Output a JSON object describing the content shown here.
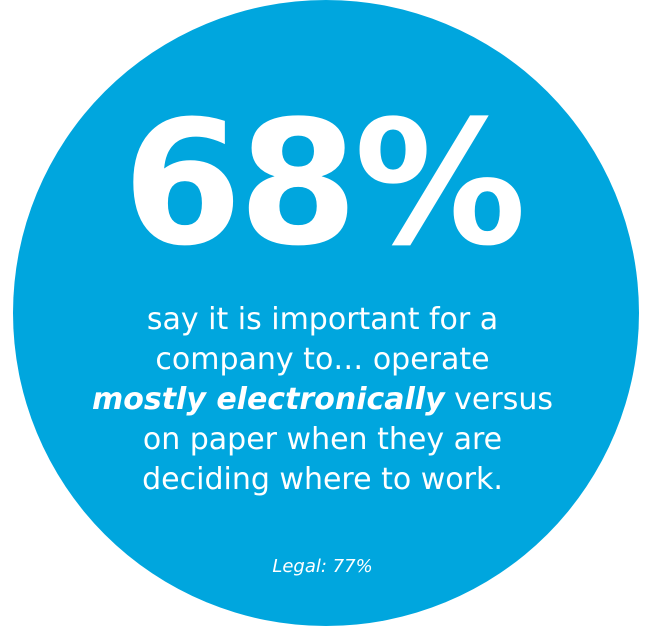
{
  "stat": {
    "value": "68%"
  },
  "statement": {
    "line1": "say it is important for a",
    "line2": "company to… operate",
    "line3_emphasis": "mostly electronically",
    "line3_rest": " versus",
    "line4": "on paper when they are",
    "line5": "deciding where to work."
  },
  "footnote": {
    "text": "Legal: 77%"
  },
  "colors": {
    "circle": "#00a6de",
    "text": "#ffffff",
    "background": "#ffffff"
  }
}
